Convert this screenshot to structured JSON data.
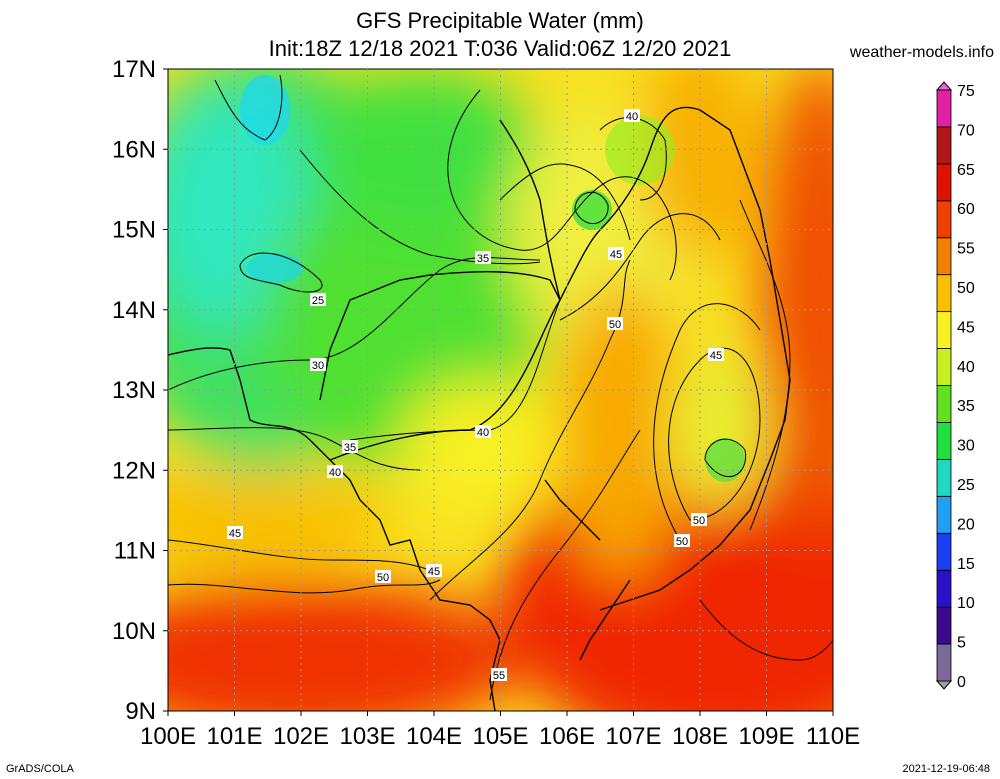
{
  "title_line1": "GFS Precipitable Water (mm)",
  "title_line2": "Init:18Z 12/18 2021 T:036 Valid:06Z 12/20 2021",
  "site": "weather-models.info",
  "footer_left": "GrADS/COLA",
  "footer_right": "2021-12-19-06:48",
  "lon_labels": [
    "100E",
    "101E",
    "102E",
    "103E",
    "104E",
    "105E",
    "106E",
    "107E",
    "108E",
    "109E",
    "110E"
  ],
  "lat_labels": [
    "9N",
    "10N",
    "11N",
    "12N",
    "13N",
    "14N",
    "15N",
    "16N",
    "17N"
  ],
  "colorbar": {
    "labels": [
      "0",
      "5",
      "10",
      "15",
      "20",
      "25",
      "30",
      "35",
      "40",
      "45",
      "50",
      "55",
      "60",
      "65",
      "70",
      "75"
    ],
    "colors": [
      "#a0a0a0",
      "#7a6a9a",
      "#3a0a8a",
      "#2a10c8",
      "#1a40f0",
      "#20a0f0",
      "#20d8c0",
      "#20e040",
      "#60e020",
      "#c8f020",
      "#f8f020",
      "#f8c000",
      "#f08000",
      "#f04000",
      "#e01000",
      "#b01818",
      "#e020a0",
      "#f060e0"
    ]
  },
  "contour_labels": [
    {
      "text": "25"
    },
    {
      "text": "30"
    },
    {
      "text": "35"
    },
    {
      "text": "35"
    },
    {
      "text": "40"
    },
    {
      "text": "40"
    },
    {
      "text": "40"
    },
    {
      "text": "45"
    },
    {
      "text": "45"
    },
    {
      "text": "45"
    },
    {
      "text": "45"
    },
    {
      "text": "50"
    },
    {
      "text": "50"
    },
    {
      "text": "50"
    },
    {
      "text": "50"
    },
    {
      "text": "55"
    }
  ]
}
